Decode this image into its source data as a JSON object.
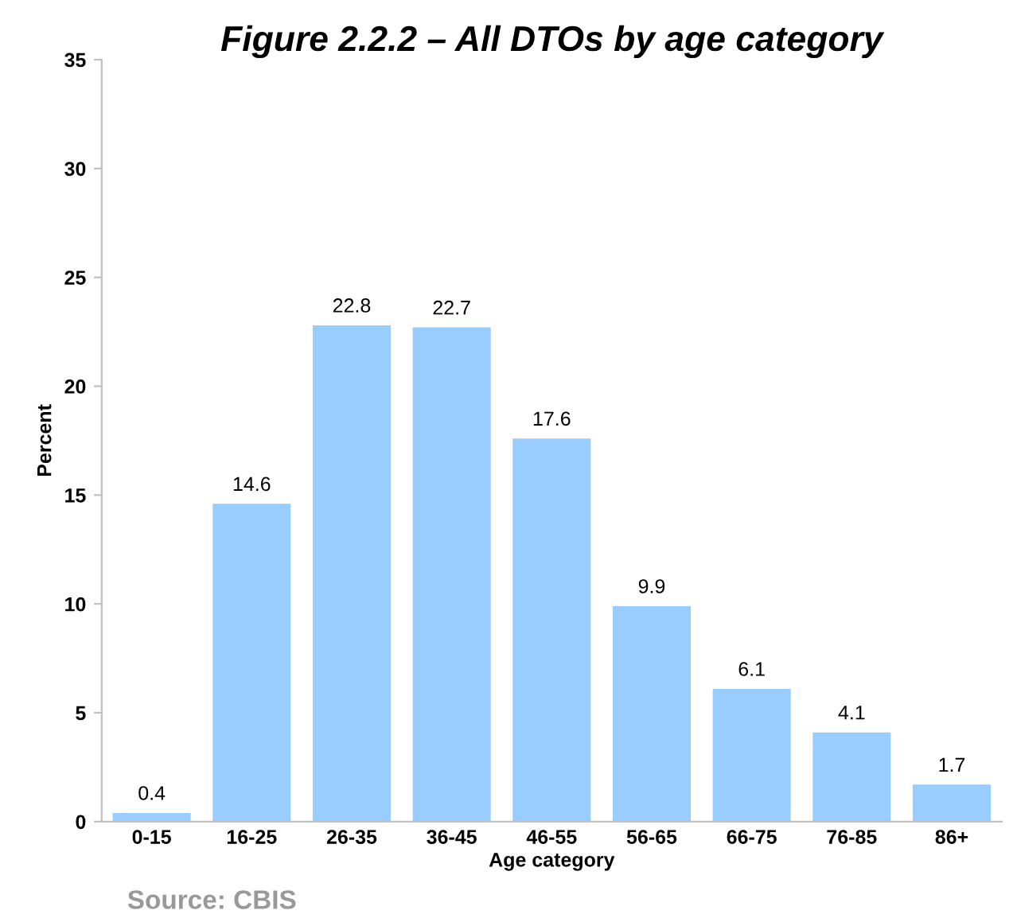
{
  "chart_data": {
    "type": "bar",
    "title": "Figure 2.2.2 – All DTOs by age category",
    "xlabel": "Age category",
    "ylabel": "Percent",
    "categories": [
      "0-15",
      "16-25",
      "26-35",
      "36-45",
      "46-55",
      "56-65",
      "66-75",
      "76-85",
      "86+"
    ],
    "values": [
      0.4,
      14.6,
      22.8,
      22.7,
      17.6,
      9.9,
      6.1,
      4.1,
      1.7
    ],
    "color": "#99ccff",
    "ylim": [
      0,
      35
    ],
    "yticks": [
      0,
      5,
      10,
      15,
      20,
      25,
      30,
      35
    ],
    "grid": false,
    "data_labels": true,
    "annotations": [
      "Source: CBIS"
    ]
  }
}
